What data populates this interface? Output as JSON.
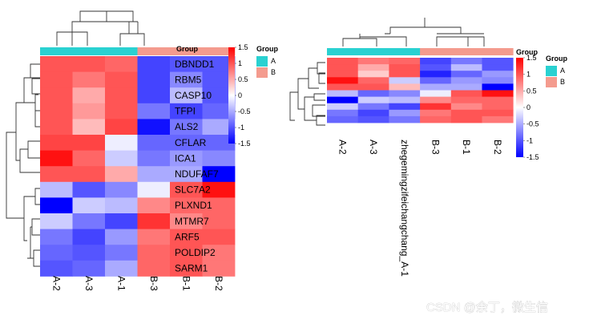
{
  "chart_data": [
    {
      "type": "heatmap",
      "annotation_title": "Group",
      "columns": [
        {
          "label": "A-2",
          "group": "A"
        },
        {
          "label": "A-3",
          "group": "A"
        },
        {
          "label": "A-1",
          "group": "A"
        },
        {
          "label": "B-3",
          "group": "B"
        },
        {
          "label": "B-1",
          "group": "B"
        },
        {
          "label": "B-2",
          "group": "B"
        }
      ],
      "rows": [
        "DBNDD1",
        "RBM5",
        "CASP10",
        "TFPI",
        "ALS2",
        "CFLAR",
        "ICA1",
        "NDUFAF7",
        "SLC7A2",
        "PLXND1",
        "MTMR7",
        "ARF5",
        "POLDIP2",
        "SARM1"
      ],
      "values": [
        [
          1.0,
          1.0,
          0.9,
          -1.1,
          -1.0,
          -1.0
        ],
        [
          1.0,
          0.8,
          1.0,
          -1.1,
          -0.7,
          -1.0
        ],
        [
          1.0,
          0.5,
          1.0,
          -1.1,
          -0.4,
          -1.0
        ],
        [
          1.0,
          0.6,
          1.0,
          -0.8,
          -1.1,
          -0.9
        ],
        [
          1.0,
          0.4,
          1.1,
          -1.4,
          -0.8,
          -0.5
        ],
        [
          1.1,
          1.1,
          -0.1,
          -0.9,
          -0.9,
          -0.9
        ],
        [
          1.4,
          0.9,
          -0.3,
          -0.8,
          -0.6,
          -0.7
        ],
        [
          1.0,
          1.0,
          0.5,
          -0.5,
          -0.5,
          -1.5
        ],
        [
          -0.4,
          -1.0,
          -0.7,
          -0.1,
          1.0,
          1.4
        ],
        [
          -1.5,
          -0.3,
          -0.4,
          0.7,
          0.9,
          0.9
        ],
        [
          -0.3,
          -0.8,
          -1.1,
          1.2,
          0.7,
          0.9
        ],
        [
          -0.8,
          -1.1,
          -0.6,
          0.8,
          1.0,
          1.0
        ],
        [
          -0.9,
          -1.0,
          -0.8,
          0.9,
          1.0,
          0.8
        ],
        [
          -1.0,
          -0.9,
          -0.5,
          0.9,
          1.0,
          0.8
        ]
      ],
      "scale": {
        "min": -1.5,
        "max": 1.5,
        "ticks": [
          "1.5",
          "1",
          "0.5",
          "0",
          "-0.5",
          "-1",
          "-1.5"
        ]
      },
      "colors": {
        "low": "#0000ff",
        "mid": "#ffffff",
        "high": "#ff0000"
      },
      "legend": {
        "title": "Group",
        "items": [
          {
            "label": "A",
            "color": "#2ad1d1"
          },
          {
            "label": "B",
            "color": "#f49b8e"
          }
        ]
      }
    },
    {
      "type": "heatmap",
      "annotation_title": "Group",
      "columns": [
        {
          "label": "A-2",
          "group": "A"
        },
        {
          "label": "A-3",
          "group": "A"
        },
        {
          "label": "zhegemingzifeichangchang_A-1",
          "group": "A"
        },
        {
          "label": "B-3",
          "group": "B"
        },
        {
          "label": "B-1",
          "group": "B"
        },
        {
          "label": "B-2",
          "group": "B"
        }
      ],
      "values": [
        [
          1.0,
          0.8,
          0.9,
          -1.1,
          -0.8,
          -1.0
        ],
        [
          1.0,
          0.5,
          1.0,
          -1.0,
          -0.4,
          -1.0
        ],
        [
          1.0,
          0.3,
          1.0,
          -1.3,
          -0.9,
          -0.6
        ],
        [
          1.4,
          0.9,
          -0.3,
          -0.9,
          -0.6,
          -0.7
        ],
        [
          1.0,
          1.0,
          0.4,
          -0.5,
          -0.5,
          -1.5
        ],
        [
          -0.4,
          -0.9,
          -0.7,
          -0.1,
          1.0,
          1.4
        ],
        [
          -1.5,
          -0.3,
          -0.4,
          0.7,
          0.9,
          0.9
        ],
        [
          -0.3,
          -0.8,
          -1.1,
          1.2,
          0.7,
          0.9
        ],
        [
          -0.8,
          -1.1,
          -0.6,
          0.8,
          1.0,
          1.0
        ],
        [
          -0.9,
          -1.0,
          -0.8,
          0.9,
          1.0,
          0.8
        ]
      ],
      "scale": {
        "min": -1.5,
        "max": 1.5,
        "ticks": [
          "1.5",
          "1",
          "0.5",
          "0",
          "-0.5",
          "-1",
          "-1.5"
        ]
      },
      "colors": {
        "low": "#0000ff",
        "mid": "#ffffff",
        "high": "#ff0000"
      },
      "legend": {
        "title": "Group",
        "items": [
          {
            "label": "A",
            "color": "#2ad1d1"
          },
          {
            "label": "B",
            "color": "#f49b8e"
          }
        ]
      }
    }
  ],
  "watermark": "CSDN @余丁，微生信"
}
